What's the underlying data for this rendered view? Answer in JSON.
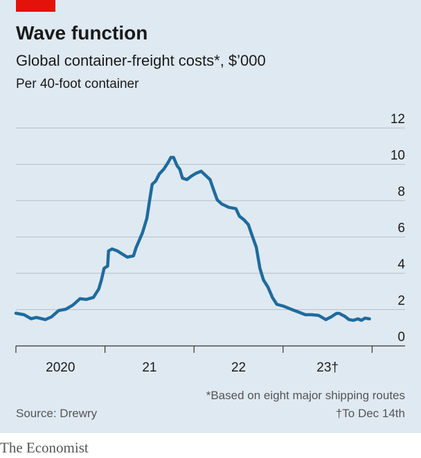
{
  "chart_data": {
    "type": "line",
    "title": "Wave function",
    "subtitle": "Global container-freight costs*, $’000",
    "unit_note": "Per 40-foot container",
    "footnotes": [
      "*Based on eight major shipping routes",
      "†To Dec 14th"
    ],
    "source": "Source: Drewry",
    "brand": "The Economist",
    "xlim": [
      2020,
      2024.37
    ],
    "ylim": [
      0,
      12
    ],
    "yticks": [
      0,
      2,
      4,
      6,
      8,
      10,
      12
    ],
    "xticks": [
      {
        "value": 2020.5,
        "label": "2020"
      },
      {
        "value": 2021.5,
        "label": "21"
      },
      {
        "value": 2022.5,
        "label": "22"
      },
      {
        "value": 2023.5,
        "label": "23†"
      }
    ],
    "year_starts": [
      2020,
      2021,
      2022,
      2023,
      2024
    ],
    "grid": true,
    "x": [
      2020.0,
      2020.09,
      2020.17,
      2020.23,
      2020.33,
      2020.4,
      2020.48,
      2020.56,
      2020.64,
      2020.72,
      2020.79,
      2020.87,
      2020.93,
      2020.96,
      2020.99,
      2021.03,
      2021.04,
      2021.08,
      2021.14,
      2021.2,
      2021.25,
      2021.32,
      2021.35,
      2021.42,
      2021.47,
      2021.5,
      2021.53,
      2021.57,
      2021.61,
      2021.66,
      2021.71,
      2021.74,
      2021.77,
      2021.81,
      2021.84,
      2021.87,
      2021.92,
      2021.97,
      2022.02,
      2022.08,
      2022.13,
      2022.18,
      2022.22,
      2022.26,
      2022.31,
      2022.39,
      2022.47,
      2022.51,
      2022.56,
      2022.61,
      2022.65,
      2022.7,
      2022.74,
      2022.78,
      2022.83,
      2022.88,
      2022.93,
      2023.01,
      2023.09,
      2023.17,
      2023.25,
      2023.32,
      2023.4,
      2023.48,
      2023.54,
      2023.6,
      2023.63,
      2023.69,
      2023.74,
      2023.79,
      2023.84,
      2023.88,
      2023.92,
      2023.97
    ],
    "series": [
      {
        "name": "Freight cost",
        "color": "#1f6b9e",
        "values": [
          1.8,
          1.72,
          1.5,
          1.57,
          1.45,
          1.6,
          1.95,
          2.02,
          2.25,
          2.6,
          2.56,
          2.67,
          3.13,
          3.63,
          4.27,
          4.4,
          5.23,
          5.34,
          5.23,
          5.04,
          4.89,
          4.96,
          5.42,
          6.22,
          7.02,
          7.98,
          8.9,
          9.08,
          9.47,
          9.73,
          10.11,
          10.38,
          10.38,
          9.92,
          9.73,
          9.24,
          9.16,
          9.35,
          9.5,
          9.62,
          9.39,
          9.16,
          8.59,
          8.05,
          7.82,
          7.63,
          7.56,
          7.14,
          6.95,
          6.68,
          6.11,
          5.42,
          4.27,
          3.63,
          3.24,
          2.67,
          2.29,
          2.18,
          2.02,
          1.87,
          1.72,
          1.72,
          1.68,
          1.45,
          1.6,
          1.79,
          1.79,
          1.64,
          1.45,
          1.41,
          1.49,
          1.41,
          1.53,
          1.49
        ]
      }
    ]
  }
}
